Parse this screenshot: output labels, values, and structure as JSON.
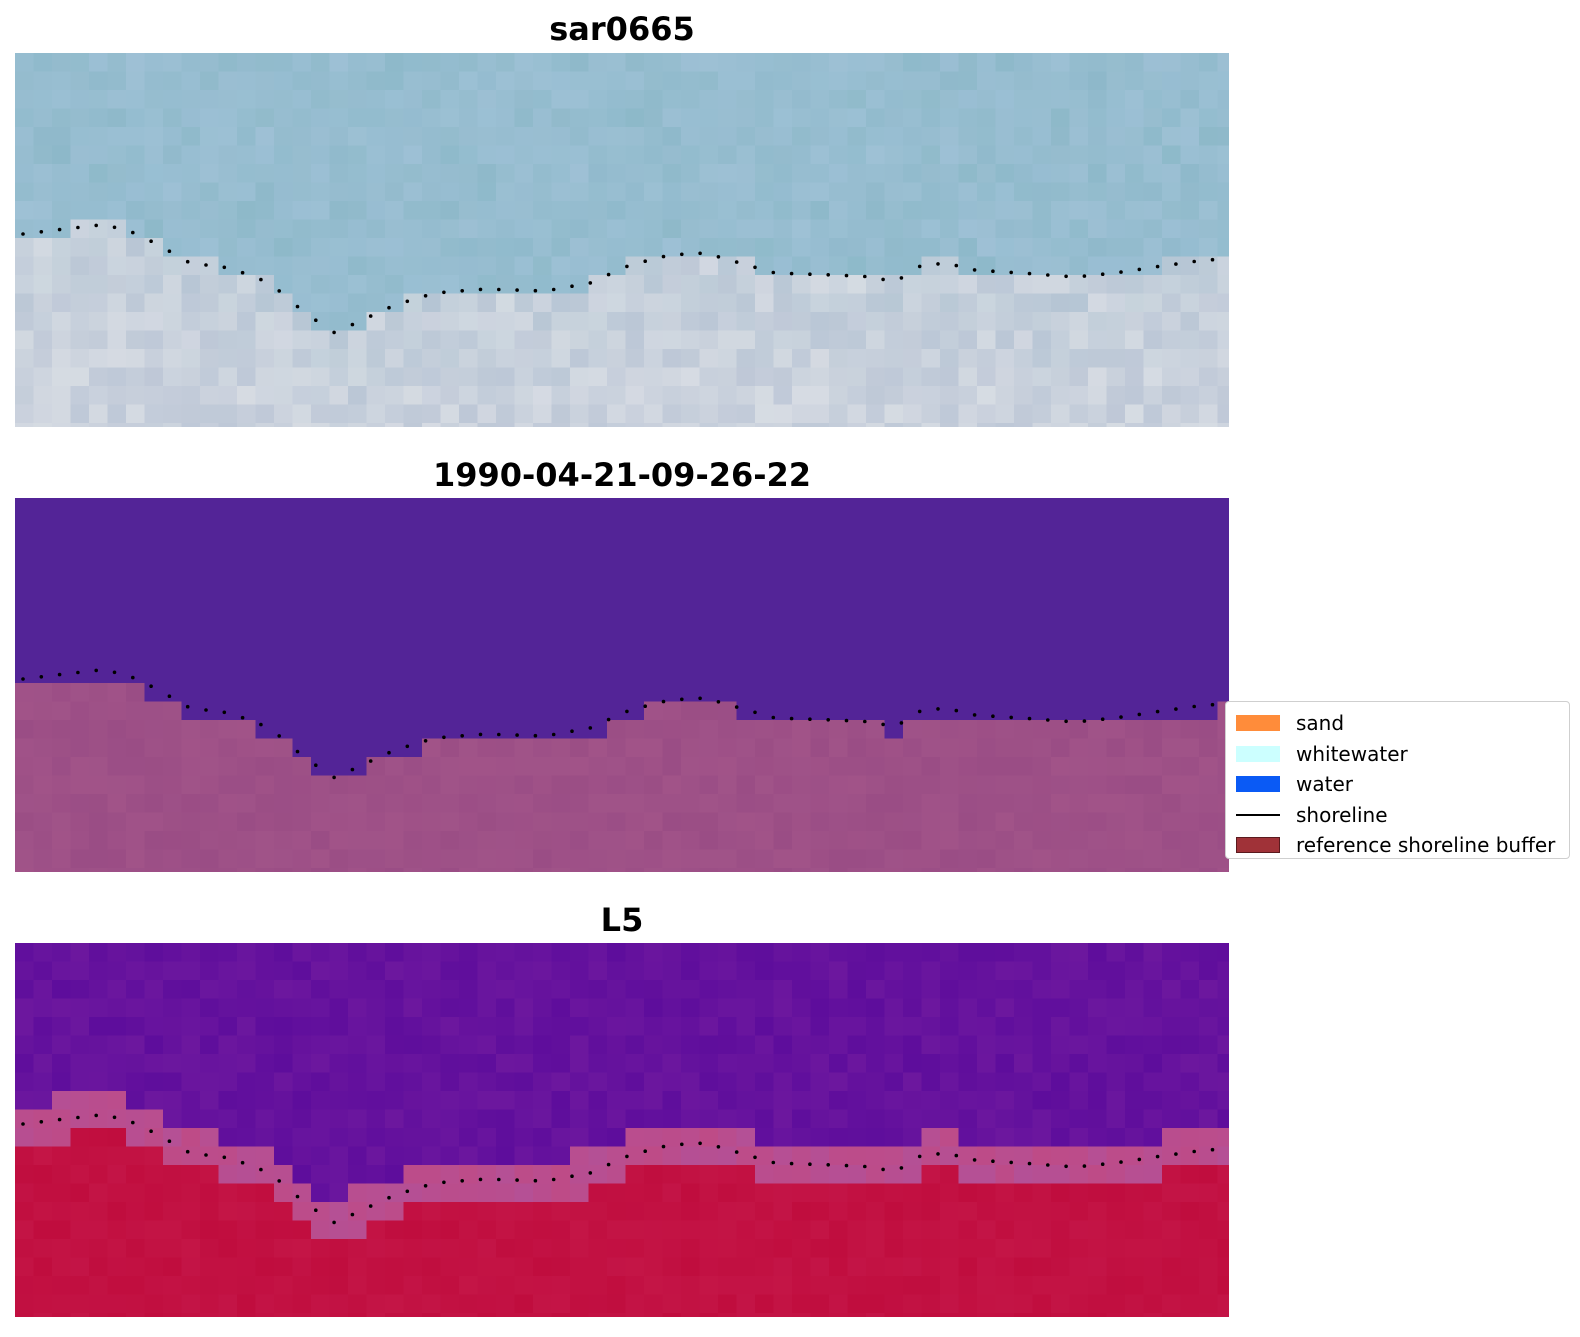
{
  "panels": [
    {
      "id": "rgb",
      "title": "sar0665"
    },
    {
      "id": "classified",
      "title": "1990-04-21-09-26-22"
    },
    {
      "id": "index",
      "title": "L5"
    }
  ],
  "legend": {
    "items": [
      {
        "label": "sand",
        "color": "#ff8c3a",
        "kind": "patch"
      },
      {
        "label": "whitewater",
        "color": "#ccffff",
        "kind": "patch"
      },
      {
        "label": "water",
        "color": "#0a5af5",
        "kind": "patch"
      },
      {
        "label": "shoreline",
        "color": "#000000",
        "kind": "line"
      },
      {
        "label": "reference shoreline buffer",
        "color": "#a03238",
        "kind": "patch"
      }
    ]
  },
  "colors": {
    "classified_water": "#532497",
    "classified_land": "#9a4d85",
    "index_water": "#5e0d9c",
    "index_land": "#c00d3e"
  }
}
